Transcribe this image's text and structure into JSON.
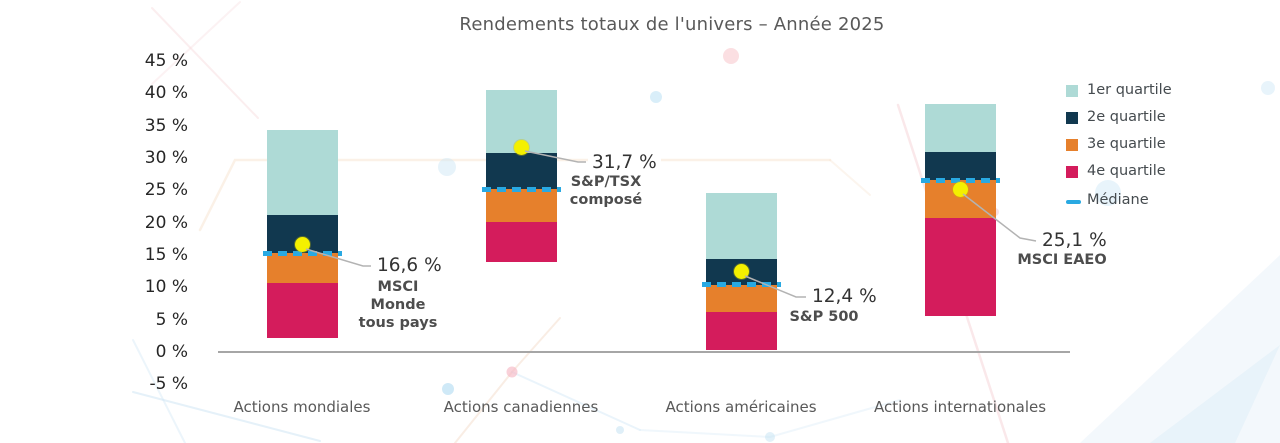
{
  "title": "Rendements totaux de l'univers – Année 2025",
  "colors": {
    "quartile1": "#aedad6",
    "quartile2": "#11384f",
    "quartile3": "#e6802c",
    "quartile4": "#d41c5c",
    "median": "#29a9e2",
    "benchmark_dot": "#f4f000",
    "axis_line": "#a6a6a6",
    "title_text": "#595959",
    "tick_text": "#262626",
    "category_text": "#595959",
    "legend_text": "#454b4f",
    "annotation_value_text": "#333333",
    "annotation_name_text": "#4d4d4d",
    "connector_line": "#b3b3b3"
  },
  "legend": {
    "items": [
      {
        "label": "1er quartile",
        "color_key": "quartile1"
      },
      {
        "label": "2e quartile",
        "color_key": "quartile2"
      },
      {
        "label": "3e quartile",
        "color_key": "quartile3"
      },
      {
        "label": "4e quartile",
        "color_key": "quartile4"
      }
    ],
    "median_item": {
      "label": "Médiane",
      "color_key": "median"
    }
  },
  "chart_data": {
    "type": "bar",
    "subtype": "stacked_quartile_ranges",
    "title": "Rendements totaux de l'univers – Année 2025",
    "unit": "%",
    "ylim": [
      -5,
      45
    ],
    "grid": false,
    "legend_position": "right",
    "y_ticks": [
      45,
      40,
      35,
      30,
      25,
      20,
      15,
      10,
      5,
      0,
      -5
    ],
    "y_tick_labels": [
      "45 %",
      "40 %",
      "35 %",
      "30 %",
      "25 %",
      "20 %",
      "15 %",
      "10 %",
      "5 %",
      "0 %",
      "-5 %"
    ],
    "categories": [
      "Actions mondiales",
      "Actions canadiennes",
      "Actions américaines",
      "Actions internationales"
    ],
    "quartiles": [
      {
        "category": "Actions mondiales",
        "min": 2.2,
        "q1": 10.7,
        "median": 15.3,
        "q3": 21.2,
        "max": 34.3
      },
      {
        "category": "Actions canadiennes",
        "min": 13.9,
        "q1": 20.1,
        "median": 25.2,
        "q3": 30.7,
        "max": 40.5
      },
      {
        "category": "Actions américaines",
        "min": 0.3,
        "q1": 6.2,
        "median": 10.4,
        "q3": 14.4,
        "max": 24.6
      },
      {
        "category": "Actions internationales",
        "min": 5.6,
        "q1": 20.7,
        "median": 26.6,
        "q3": 30.9,
        "max": 38.4
      }
    ],
    "benchmarks": [
      {
        "category": "Actions mondiales",
        "value": 16.6,
        "value_label": "16,6 %",
        "name_lines": [
          "MSCI",
          "Monde",
          "tous pays"
        ]
      },
      {
        "category": "Actions canadiennes",
        "value": 31.7,
        "value_label": "31,7 %",
        "name_lines": [
          "S&P/TSX",
          "composé"
        ]
      },
      {
        "category": "Actions américaines",
        "value": 12.4,
        "value_label": "12,4 %",
        "name_lines": [
          "S&P 500"
        ]
      },
      {
        "category": "Actions internationales",
        "value": 25.1,
        "value_label": "25,1 %",
        "name_lines": [
          "MSCI EAEO"
        ]
      }
    ]
  }
}
